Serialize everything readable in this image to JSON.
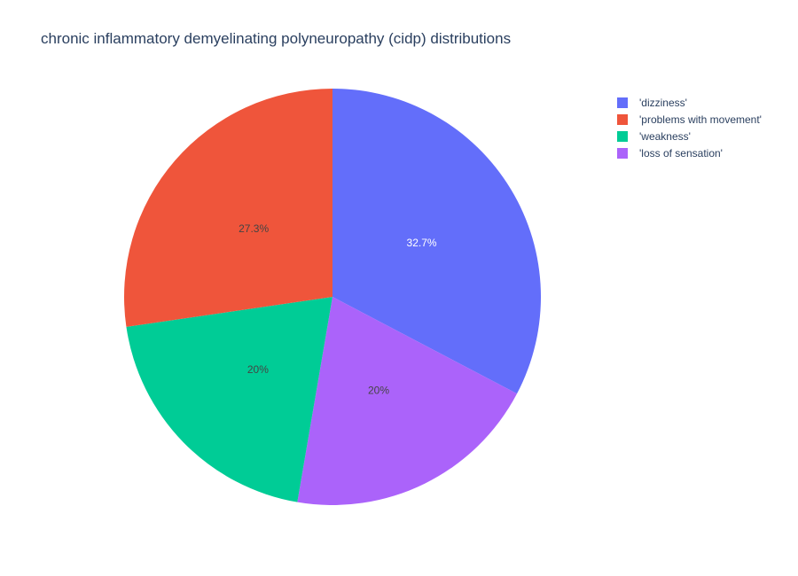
{
  "chart_data": {
    "type": "pie",
    "title": "chronic inflammatory demyelinating polyneuropathy (cidp) distributions",
    "legend_position": "top-right",
    "slices": [
      {
        "label": "'dizziness'",
        "value": 32.7,
        "text": "32.7%",
        "color": "#636efa",
        "text_color": "#ffffff"
      },
      {
        "label": "'loss of sensation'",
        "value": 20,
        "text": "20%",
        "color": "#ab63fa",
        "text_color": "#444444"
      },
      {
        "label": "'weakness'",
        "value": 20,
        "text": "20%",
        "color": "#00cc96",
        "text_color": "#444444"
      },
      {
        "label": "'problems with movement'",
        "value": 27.3,
        "text": "27.3%",
        "color": "#ef553b",
        "text_color": "#444444"
      }
    ],
    "legend_order": [
      "'dizziness'",
      "'problems with movement'",
      "'weakness'",
      "'loss of sensation'"
    ]
  }
}
